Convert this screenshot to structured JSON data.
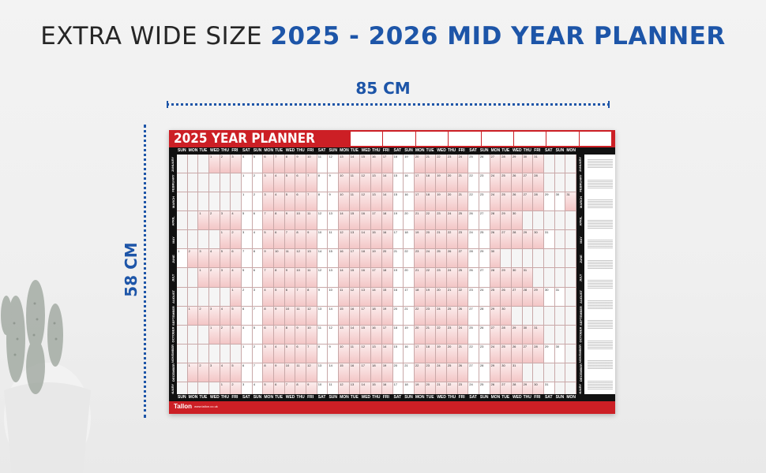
{
  "headline": {
    "part1": "EXTRA WIDE SIZE ",
    "part2": "2025 - 2026 MID YEAR PLANNER"
  },
  "dimensions": {
    "width": "85 CM",
    "height": "58 CM"
  },
  "colors": {
    "accent_blue": "#1d55a8",
    "poster_red": "#cc1f25",
    "dark": "#111111"
  },
  "poster": {
    "title": "2025 YEAR PLANNER",
    "brand": "Tallon",
    "brand_url": "www.tallon.co.uk",
    "weekdays": [
      "SUN",
      "MON",
      "TUE",
      "WED",
      "THU",
      "FRI",
      "SAT"
    ],
    "months": [
      "JANUARY",
      "FEBRUARY",
      "MARCH",
      "APRIL",
      "MAY",
      "JUNE",
      "JULY",
      "AUGUST",
      "SEPTEMBER",
      "OCTOBER",
      "NOVEMBER",
      "DECEMBER",
      "JANUARY"
    ],
    "month_start_offsets": [
      3,
      6,
      6,
      2,
      4,
      0,
      2,
      5,
      1,
      3,
      6,
      1,
      4
    ],
    "month_lengths": [
      31,
      28,
      31,
      30,
      31,
      30,
      31,
      31,
      30,
      31,
      30,
      31,
      31
    ]
  }
}
